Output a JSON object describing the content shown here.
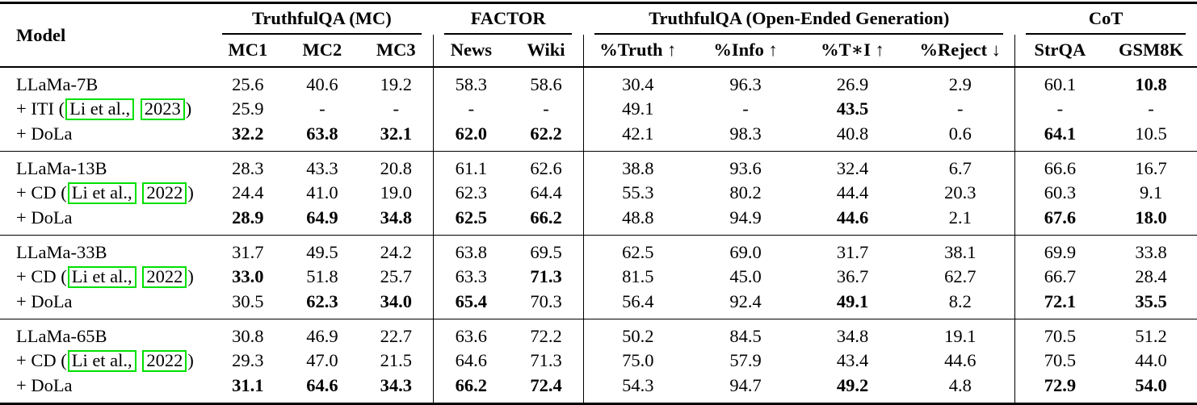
{
  "table": {
    "colors": {
      "citation_box": "#00e000"
    },
    "header": {
      "model": "Model",
      "groups": [
        {
          "label": "TruthfulQA (MC)",
          "cols": [
            "MC1",
            "MC2",
            "MC3"
          ]
        },
        {
          "label": "FACTOR",
          "cols": [
            "News",
            "Wiki"
          ]
        },
        {
          "label": "TruthfulQA (Open-Ended Generation)",
          "cols": [
            "%Truth ↑",
            "%Info ↑",
            "%T∗I ↑",
            "%Reject ↓"
          ]
        },
        {
          "label": "CoT",
          "cols": [
            "StrQA",
            "GSM8K"
          ]
        }
      ]
    },
    "blocks": [
      {
        "rows": [
          {
            "model": {
              "text": "LLaMa-7B"
            },
            "cells": [
              "25.6",
              "40.6",
              "19.2",
              "58.3",
              "58.6",
              "30.4",
              "96.3",
              "26.9",
              "2.9",
              "60.1",
              "10.8"
            ],
            "bold": [
              10
            ]
          },
          {
            "model": {
              "prefix": "+ ITI (",
              "citation": "Li et al.,",
              "year": "2023",
              "suffix": ")"
            },
            "cells": [
              "25.9",
              "-",
              "-",
              "-",
              "-",
              "49.1",
              "-",
              "43.5",
              "-",
              "-",
              "-"
            ],
            "bold": [
              7
            ]
          },
          {
            "model": {
              "text": "+ DoLa"
            },
            "cells": [
              "32.2",
              "63.8",
              "32.1",
              "62.0",
              "62.2",
              "42.1",
              "98.3",
              "40.8",
              "0.6",
              "64.1",
              "10.5"
            ],
            "bold": [
              0,
              1,
              2,
              3,
              4,
              9
            ]
          }
        ]
      },
      {
        "rows": [
          {
            "model": {
              "text": "LLaMa-13B"
            },
            "cells": [
              "28.3",
              "43.3",
              "20.8",
              "61.1",
              "62.6",
              "38.8",
              "93.6",
              "32.4",
              "6.7",
              "66.6",
              "16.7"
            ],
            "bold": []
          },
          {
            "model": {
              "prefix": "+ CD (",
              "citation": "Li et al.,",
              "year": "2022",
              "suffix": ")"
            },
            "cells": [
              "24.4",
              "41.0",
              "19.0",
              "62.3",
              "64.4",
              "55.3",
              "80.2",
              "44.4",
              "20.3",
              "60.3",
              "9.1"
            ],
            "bold": []
          },
          {
            "model": {
              "text": "+ DoLa"
            },
            "cells": [
              "28.9",
              "64.9",
              "34.8",
              "62.5",
              "66.2",
              "48.8",
              "94.9",
              "44.6",
              "2.1",
              "67.6",
              "18.0"
            ],
            "bold": [
              0,
              1,
              2,
              3,
              4,
              7,
              9,
              10
            ]
          }
        ]
      },
      {
        "rows": [
          {
            "model": {
              "text": "LLaMa-33B"
            },
            "cells": [
              "31.7",
              "49.5",
              "24.2",
              "63.8",
              "69.5",
              "62.5",
              "69.0",
              "31.7",
              "38.1",
              "69.9",
              "33.8"
            ],
            "bold": []
          },
          {
            "model": {
              "prefix": "+ CD (",
              "citation": "Li et al.,",
              "year": "2022",
              "suffix": ")"
            },
            "cells": [
              "33.0",
              "51.8",
              "25.7",
              "63.3",
              "71.3",
              "81.5",
              "45.0",
              "36.7",
              "62.7",
              "66.7",
              "28.4"
            ],
            "bold": [
              0,
              4
            ]
          },
          {
            "model": {
              "text": "+ DoLa"
            },
            "cells": [
              "30.5",
              "62.3",
              "34.0",
              "65.4",
              "70.3",
              "56.4",
              "92.4",
              "49.1",
              "8.2",
              "72.1",
              "35.5"
            ],
            "bold": [
              1,
              2,
              3,
              7,
              9,
              10
            ]
          }
        ]
      },
      {
        "rows": [
          {
            "model": {
              "text": "LLaMa-65B"
            },
            "cells": [
              "30.8",
              "46.9",
              "22.7",
              "63.6",
              "72.2",
              "50.2",
              "84.5",
              "34.8",
              "19.1",
              "70.5",
              "51.2"
            ],
            "bold": []
          },
          {
            "model": {
              "prefix": "+ CD (",
              "citation": "Li et al.,",
              "year": "2022",
              "suffix": ")"
            },
            "cells": [
              "29.3",
              "47.0",
              "21.5",
              "64.6",
              "71.3",
              "75.0",
              "57.9",
              "43.4",
              "44.6",
              "70.5",
              "44.0"
            ],
            "bold": []
          },
          {
            "model": {
              "text": "+ DoLa"
            },
            "cells": [
              "31.1",
              "64.6",
              "34.3",
              "66.2",
              "72.4",
              "54.3",
              "94.7",
              "49.2",
              "4.8",
              "72.9",
              "54.0"
            ],
            "bold": [
              0,
              1,
              2,
              3,
              4,
              7,
              9,
              10
            ]
          }
        ]
      }
    ]
  }
}
